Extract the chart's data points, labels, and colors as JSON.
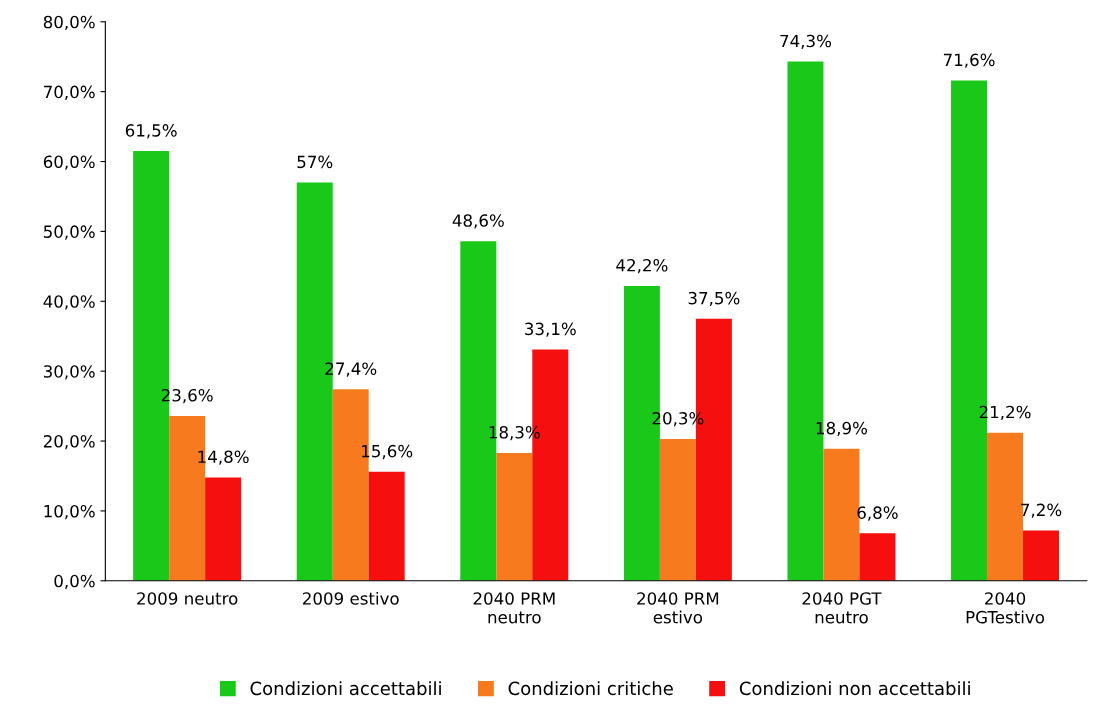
{
  "chart_data": {
    "type": "bar",
    "categories": [
      "2009 neutro",
      "2009 estivo",
      "2040 PRM\nneutro",
      "2040 PRM\nestivo",
      "2040 PGT\nneutro",
      "2040\nPGTestivo"
    ],
    "series": [
      {
        "name": "Condizioni accettabili",
        "color": "#19c819",
        "values": [
          61.5,
          57,
          48.6,
          42.2,
          74.3,
          71.6
        ],
        "value_labels": [
          "61,5%",
          "57%",
          "48,6%",
          "42,2%",
          "74,3%",
          "71,6%"
        ]
      },
      {
        "name": "Condizioni critiche",
        "color": "#f77b1e",
        "values": [
          23.6,
          27.4,
          18.3,
          20.3,
          18.9,
          21.2
        ],
        "value_labels": [
          "23,6%",
          "27,4%",
          "18,3%",
          "20,3%",
          "18,9%",
          "21,2%"
        ]
      },
      {
        "name": "Condizioni non accettabili",
        "color": "#f50f0f",
        "values": [
          14.8,
          15.6,
          33.1,
          37.5,
          6.8,
          7.2
        ],
        "value_labels": [
          "14,8%",
          "15,6%",
          "33,1%",
          "37,5%",
          "6,8%",
          "7,2%"
        ]
      }
    ],
    "ylim": [
      0,
      80
    ],
    "yticks": [
      {
        "value": 0,
        "label": "0,0%"
      },
      {
        "value": 10,
        "label": "10,0%"
      },
      {
        "value": 20,
        "label": "20,0%"
      },
      {
        "value": 30,
        "label": "30,0%"
      },
      {
        "value": 40,
        "label": "40,0%"
      },
      {
        "value": 50,
        "label": "50,0%"
      },
      {
        "value": 60,
        "label": "60,0%"
      },
      {
        "value": 70,
        "label": "70,0%"
      },
      {
        "value": 80,
        "label": "80,0%"
      }
    ],
    "grid": false,
    "legend": "bottom"
  }
}
